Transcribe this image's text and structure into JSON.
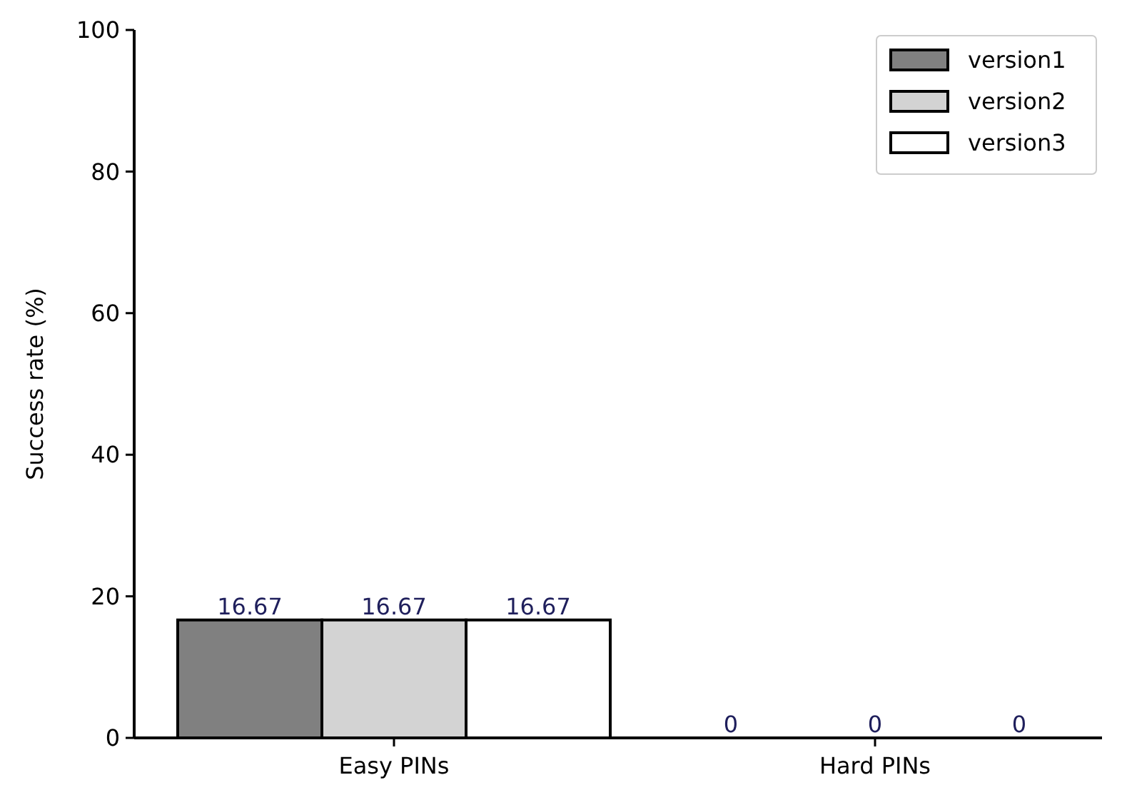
{
  "chart_data": {
    "type": "bar",
    "ylabel": "Success rate (%)",
    "categories": [
      "Easy PINs",
      "Hard PINs"
    ],
    "series": [
      {
        "name": "version1",
        "color": "#808080",
        "values": [
          16.67,
          0
        ]
      },
      {
        "name": "version2",
        "color": "#d3d3d3",
        "values": [
          16.67,
          0
        ]
      },
      {
        "name": "version3",
        "color": "#ffffff",
        "values": [
          16.67,
          0
        ]
      }
    ],
    "ylim": [
      0,
      100
    ],
    "yticks": [
      0,
      20,
      40,
      60,
      80,
      100
    ],
    "data_labels": true,
    "legend": "top right",
    "grid": false
  }
}
